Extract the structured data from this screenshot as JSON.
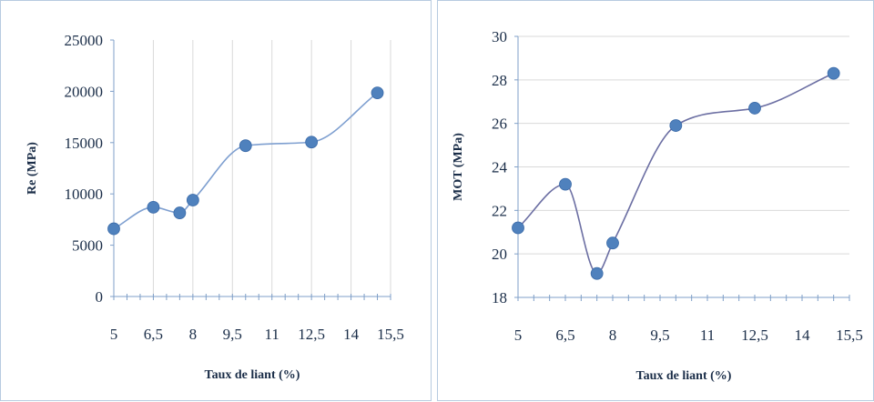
{
  "chart_data": [
    {
      "type": "line",
      "smooth": true,
      "xlabel": "Taux de liant (%)",
      "ylabel": "Re (MPa)",
      "xlim": [
        5,
        15.5
      ],
      "ylim": [
        0,
        25000
      ],
      "x_ticks": [
        5,
        6.5,
        8,
        9.5,
        11,
        12.5,
        14,
        15.5
      ],
      "x_tick_labels": [
        "5",
        "6,5",
        "8",
        "9,5",
        "11",
        "12,5",
        "14",
        "15,5"
      ],
      "y_ticks": [
        0,
        5000,
        10000,
        15000,
        20000,
        25000
      ],
      "y_tick_labels": [
        "0",
        "5000",
        "10000",
        "15000",
        "20000",
        "25000"
      ],
      "grid": "vertical",
      "colors": {
        "line": "#7e9fd0",
        "marker": "#4f81bd",
        "grid": "#d9d9d9",
        "axis": "#7f9fc8",
        "text": "#1a2d48"
      },
      "series": [
        {
          "x": [
            5,
            6.5,
            7.5,
            8,
            10,
            12.5,
            15
          ],
          "y": [
            6600,
            8700,
            8150,
            9400,
            14700,
            15050,
            19850
          ]
        }
      ]
    },
    {
      "type": "line",
      "smooth": true,
      "xlabel": "Taux de liant (%)",
      "ylabel": "MOT (MPa)",
      "xlim": [
        5,
        15.5
      ],
      "ylim": [
        18,
        30
      ],
      "x_ticks": [
        5,
        6.5,
        8,
        9.5,
        11,
        12.5,
        14,
        15.5
      ],
      "x_tick_labels": [
        "5",
        "6,5",
        "8",
        "9,5",
        "11",
        "12,5",
        "14",
        "15,5"
      ],
      "y_ticks": [
        18,
        20,
        22,
        24,
        26,
        28,
        30
      ],
      "y_tick_labels": [
        "18",
        "20",
        "22",
        "24",
        "26",
        "28",
        "30"
      ],
      "grid": "horizontal",
      "colors": {
        "line": "#6c6fa3",
        "marker": "#4f81bd",
        "grid": "#d9d9d9",
        "axis": "#7f9fc8",
        "text": "#1a2d48"
      },
      "series": [
        {
          "x": [
            5,
            6.5,
            7.5,
            8,
            10,
            12.5,
            15
          ],
          "y": [
            21.2,
            23.2,
            19.1,
            20.5,
            25.9,
            26.7,
            28.3
          ]
        }
      ]
    }
  ]
}
